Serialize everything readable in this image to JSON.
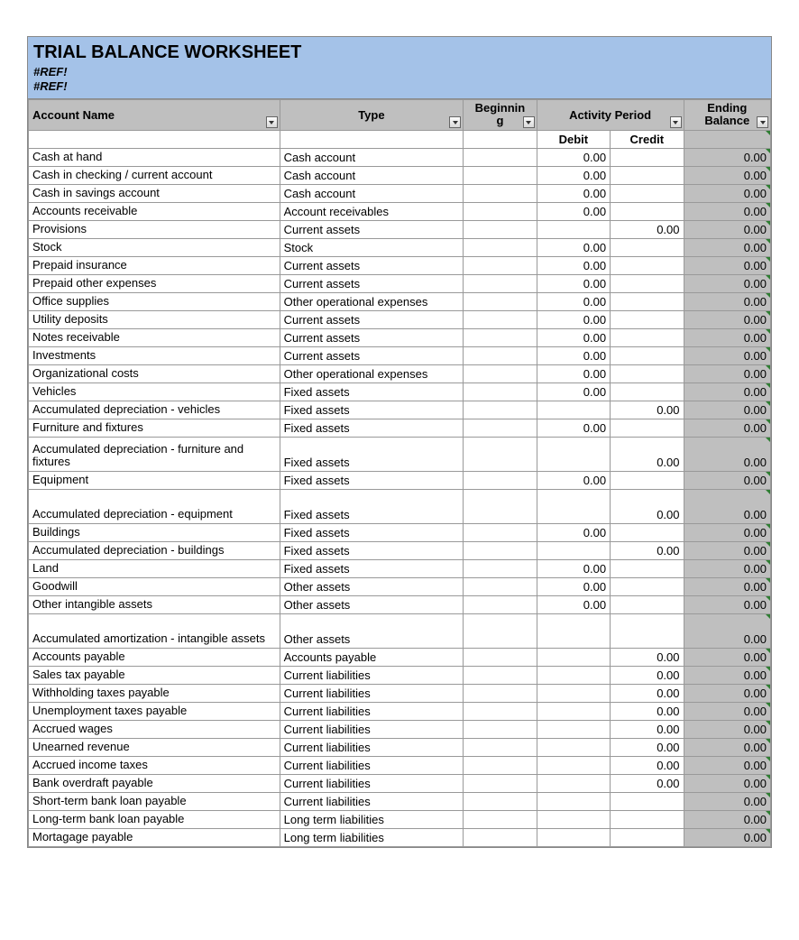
{
  "colors": {
    "title_bg": "#a4c2e8",
    "header_bg": "#bfbfbf",
    "ending_bg": "#bfbfbf",
    "border": "#999999",
    "corner_mark": "#2e7d32"
  },
  "title": "TRIAL BALANCE WORKSHEET",
  "ref1": "#REF!",
  "ref2": "#REF!",
  "headers": {
    "account": "Account Name",
    "type": "Type",
    "beginning": "Beginnin\ng",
    "activity": "Activity Period",
    "ending": "Ending Balance",
    "debit": "Debit",
    "credit": "Credit"
  },
  "rows": [
    {
      "name": "Cash at hand",
      "type": "Cash account",
      "debit": "0.00",
      "credit": "",
      "end": "0.00"
    },
    {
      "name": "Cash in checking / current account",
      "type": "Cash account",
      "debit": "0.00",
      "credit": "",
      "end": "0.00"
    },
    {
      "name": "Cash in savings account",
      "type": "Cash account",
      "debit": "0.00",
      "credit": "",
      "end": "0.00"
    },
    {
      "name": "Accounts receivable",
      "type": "Account receivables",
      "debit": "0.00",
      "credit": "",
      "end": "0.00"
    },
    {
      "name": "Provisions",
      "type": "Current assets",
      "debit": "",
      "credit": "0.00",
      "end": "0.00"
    },
    {
      "name": "Stock",
      "type": "Stock",
      "debit": "0.00",
      "credit": "",
      "end": "0.00"
    },
    {
      "name": "Prepaid insurance",
      "type": "Current assets",
      "debit": "0.00",
      "credit": "",
      "end": "0.00"
    },
    {
      "name": "Prepaid other expenses",
      "type": "Current assets",
      "debit": "0.00",
      "credit": "",
      "end": "0.00"
    },
    {
      "name": "Office supplies",
      "type": "Other operational expenses",
      "debit": "0.00",
      "credit": "",
      "end": "0.00"
    },
    {
      "name": "Utility deposits",
      "type": "Current assets",
      "debit": "0.00",
      "credit": "",
      "end": "0.00"
    },
    {
      "name": "Notes receivable",
      "type": "Current assets",
      "debit": "0.00",
      "credit": "",
      "end": "0.00"
    },
    {
      "name": "Investments",
      "type": "Current assets",
      "debit": "0.00",
      "credit": "",
      "end": "0.00"
    },
    {
      "name": "Organizational costs",
      "type": "Other operational expenses",
      "debit": "0.00",
      "credit": "",
      "end": "0.00"
    },
    {
      "name": "Vehicles",
      "type": "Fixed assets",
      "debit": "0.00",
      "credit": "",
      "end": "0.00"
    },
    {
      "name": "Accumulated depreciation - vehicles",
      "type": "Fixed assets",
      "debit": "",
      "credit": "0.00",
      "end": "0.00"
    },
    {
      "name": "Furniture and fixtures",
      "type": "Fixed assets",
      "debit": "0.00",
      "credit": "",
      "end": "0.00"
    },
    {
      "name": "Accumulated depreciation - furniture and fixtures",
      "type": "Fixed assets",
      "debit": "",
      "credit": "0.00",
      "end": "0.00",
      "tall": true
    },
    {
      "name": "Equipment",
      "type": "Fixed assets",
      "debit": "0.00",
      "credit": "",
      "end": "0.00"
    },
    {
      "name": "Accumulated depreciation - equipment",
      "type": "Fixed assets",
      "debit": "",
      "credit": "0.00",
      "end": "0.00",
      "tall": true
    },
    {
      "name": "Buildings",
      "type": "Fixed assets",
      "debit": "0.00",
      "credit": "",
      "end": "0.00"
    },
    {
      "name": "Accumulated depreciation - buildings",
      "type": "Fixed assets",
      "debit": "",
      "credit": "0.00",
      "end": "0.00"
    },
    {
      "name": "Land",
      "type": "Fixed assets",
      "debit": "0.00",
      "credit": "",
      "end": "0.00"
    },
    {
      "name": "Goodwill",
      "type": "Other assets",
      "debit": "0.00",
      "credit": "",
      "end": "0.00"
    },
    {
      "name": "Other intangible assets",
      "type": "Other assets",
      "debit": "0.00",
      "credit": "",
      "end": "0.00"
    },
    {
      "name": "Accumulated amortization - intangible assets",
      "type": "Other assets",
      "debit": "",
      "credit": "",
      "end": "0.00",
      "tall": true
    },
    {
      "name": "Accounts payable",
      "type": "Accounts payable",
      "debit": "",
      "credit": "0.00",
      "end": "0.00"
    },
    {
      "name": "Sales tax payable",
      "type": "Current liabilities",
      "debit": "",
      "credit": "0.00",
      "end": "0.00"
    },
    {
      "name": "Withholding taxes payable",
      "type": "Current liabilities",
      "debit": "",
      "credit": "0.00",
      "end": "0.00"
    },
    {
      "name": "Unemployment taxes payable",
      "type": "Current liabilities",
      "debit": "",
      "credit": "0.00",
      "end": "0.00"
    },
    {
      "name": "Accrued wages",
      "type": "Current liabilities",
      "debit": "",
      "credit": "0.00",
      "end": "0.00"
    },
    {
      "name": "Unearned revenue",
      "type": "Current liabilities",
      "debit": "",
      "credit": "0.00",
      "end": "0.00"
    },
    {
      "name": "Accrued income taxes",
      "type": "Current liabilities",
      "debit": "",
      "credit": "0.00",
      "end": "0.00"
    },
    {
      "name": "Bank overdraft payable",
      "type": "Current liabilities",
      "debit": "",
      "credit": "0.00",
      "end": "0.00"
    },
    {
      "name": "Short-term bank loan payable",
      "type": "Current liabilities",
      "debit": "",
      "credit": "",
      "end": "0.00"
    },
    {
      "name": "Long-term bank loan payable",
      "type": "Long term liabilities",
      "debit": "",
      "credit": "",
      "end": "0.00"
    },
    {
      "name": "Mortagage payable",
      "type": "Long term liabilities",
      "debit": "",
      "credit": "",
      "end": "0.00"
    }
  ]
}
